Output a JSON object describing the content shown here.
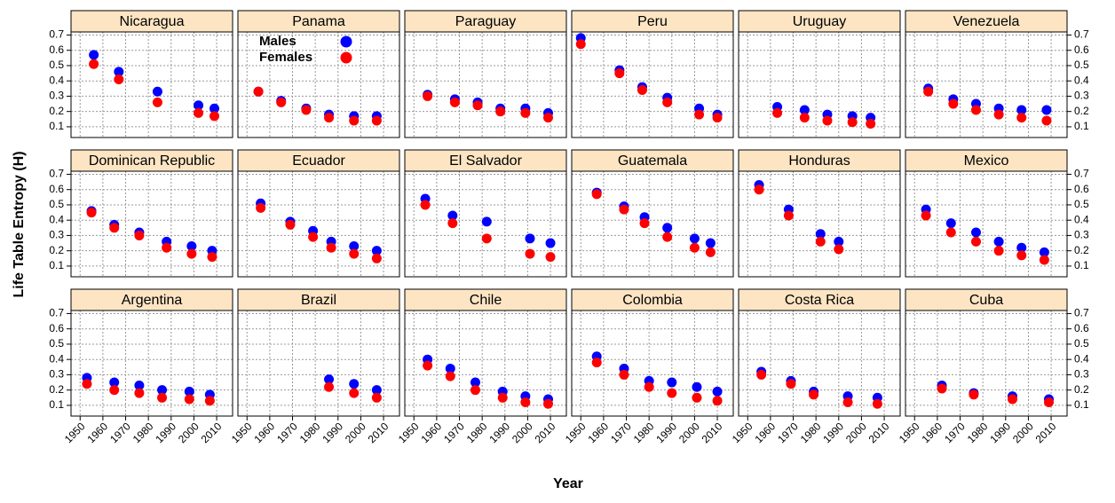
{
  "chart_data": {
    "type": "scatter",
    "x_label": "Year",
    "y_label": "Life Table Entropy (H)",
    "xlim": [
      1946,
      2017
    ],
    "xticks": [
      1950,
      1960,
      1970,
      1980,
      1990,
      2000,
      2010
    ],
    "ylim": [
      0.03,
      0.72
    ],
    "yticks": [
      0.1,
      0.2,
      0.3,
      0.4,
      0.5,
      0.6,
      0.7
    ],
    "grid": true,
    "series": [
      {
        "name": "Males",
        "color": "#0000ff"
      },
      {
        "name": "Females",
        "color": "#ff0000"
      }
    ],
    "panels": [
      {
        "title": "Nicaragua",
        "x": [
          1956,
          1967,
          1984,
          2002,
          2009
        ],
        "series": [
          {
            "values": [
              0.57,
              0.46,
              0.33,
              0.24,
              0.22
            ]
          },
          {
            "values": [
              0.51,
              0.41,
              0.26,
              0.19,
              0.17
            ]
          }
        ]
      },
      {
        "title": "Panama",
        "x": [
          1955,
          1965,
          1976,
          1986,
          1997,
          2007
        ],
        "series": [
          {
            "values": [
              0.33,
              0.27,
              0.22,
              0.18,
              0.17,
              0.17
            ]
          },
          {
            "values": [
              0.33,
              0.26,
              0.21,
              0.16,
              0.14,
              0.14
            ]
          }
        ]
      },
      {
        "title": "Paraguay",
        "x": [
          1956,
          1968,
          1978,
          1988,
          1999,
          2009
        ],
        "series": [
          {
            "values": [
              0.31,
              0.28,
              0.26,
              0.22,
              0.22,
              0.19
            ]
          },
          {
            "values": [
              0.3,
              0.26,
              0.24,
              0.2,
              0.19,
              0.16
            ]
          }
        ]
      },
      {
        "title": "Peru",
        "x": [
          1950,
          1967,
          1977,
          1988,
          2002,
          2010
        ],
        "series": [
          {
            "values": [
              0.68,
              0.47,
              0.36,
              0.29,
              0.22,
              0.18
            ]
          },
          {
            "values": [
              0.64,
              0.45,
              0.34,
              0.26,
              0.18,
              0.16
            ]
          }
        ]
      },
      {
        "title": "Uruguay",
        "x": [
          1963,
          1975,
          1985,
          1996,
          2004
        ],
        "series": [
          {
            "values": [
              0.23,
              0.21,
              0.18,
              0.17,
              0.16
            ]
          },
          {
            "values": [
              0.19,
              0.16,
              0.14,
              0.13,
              0.12
            ]
          }
        ]
      },
      {
        "title": "Venezuela",
        "x": [
          1956,
          1967,
          1977,
          1987,
          1997,
          2008
        ],
        "series": [
          {
            "values": [
              0.35,
              0.28,
              0.25,
              0.22,
              0.21,
              0.21
            ]
          },
          {
            "values": [
              0.33,
              0.25,
              0.21,
              0.18,
              0.16,
              0.14
            ]
          }
        ]
      },
      {
        "title": "Dominican Republic",
        "x": [
          1955,
          1965,
          1976,
          1988,
          1999,
          2008
        ],
        "series": [
          {
            "values": [
              0.46,
              0.37,
              0.32,
              0.26,
              0.23,
              0.2
            ]
          },
          {
            "values": [
              0.45,
              0.35,
              0.3,
              0.22,
              0.18,
              0.16
            ]
          }
        ]
      },
      {
        "title": "Ecuador",
        "x": [
          1956,
          1969,
          1979,
          1987,
          1997,
          2007
        ],
        "series": [
          {
            "values": [
              0.51,
              0.39,
              0.33,
              0.26,
              0.23,
              0.2
            ]
          },
          {
            "values": [
              0.48,
              0.37,
              0.29,
              0.22,
              0.18,
              0.15
            ]
          }
        ]
      },
      {
        "title": "El Salvador",
        "x": [
          1955,
          1967,
          1982,
          2001,
          2010
        ],
        "series": [
          {
            "values": [
              0.54,
              0.43,
              0.39,
              0.28,
              0.25
            ]
          },
          {
            "values": [
              0.5,
              0.38,
              0.28,
              0.18,
              0.16
            ]
          }
        ]
      },
      {
        "title": "Guatemala",
        "x": [
          1957,
          1969,
          1978,
          1988,
          2000,
          2007
        ],
        "series": [
          {
            "values": [
              0.58,
              0.49,
              0.42,
              0.35,
              0.28,
              0.25
            ]
          },
          {
            "values": [
              0.57,
              0.47,
              0.38,
              0.29,
              0.22,
              0.19
            ]
          }
        ]
      },
      {
        "title": "Honduras",
        "x": [
          1955,
          1968,
          1982,
          1990
        ],
        "series": [
          {
            "values": [
              0.63,
              0.47,
              0.31,
              0.26
            ]
          },
          {
            "values": [
              0.6,
              0.43,
              0.26,
              0.21
            ]
          }
        ]
      },
      {
        "title": "Mexico",
        "x": [
          1955,
          1966,
          1977,
          1987,
          1997,
          2007
        ],
        "series": [
          {
            "values": [
              0.47,
              0.38,
              0.32,
              0.26,
              0.22,
              0.19
            ]
          },
          {
            "values": [
              0.43,
              0.32,
              0.26,
              0.2,
              0.17,
              0.14
            ]
          }
        ]
      },
      {
        "title": "Argentina",
        "x": [
          1953,
          1965,
          1976,
          1986,
          1998,
          2007
        ],
        "series": [
          {
            "values": [
              0.28,
              0.25,
              0.23,
              0.2,
              0.19,
              0.17
            ]
          },
          {
            "values": [
              0.24,
              0.2,
              0.18,
              0.15,
              0.14,
              0.13
            ]
          }
        ]
      },
      {
        "title": "Brazil",
        "x": [
          1986,
          1997,
          2007
        ],
        "series": [
          {
            "values": [
              0.27,
              0.24,
              0.2
            ]
          },
          {
            "values": [
              0.22,
              0.18,
              0.15
            ]
          }
        ]
      },
      {
        "title": "Chile",
        "x": [
          1956,
          1966,
          1977,
          1989,
          1999,
          2009
        ],
        "series": [
          {
            "values": [
              0.4,
              0.34,
              0.25,
              0.19,
              0.16,
              0.14
            ]
          },
          {
            "values": [
              0.36,
              0.29,
              0.2,
              0.15,
              0.12,
              0.11
            ]
          }
        ]
      },
      {
        "title": "Colombia",
        "x": [
          1957,
          1969,
          1980,
          1990,
          2001,
          2010
        ],
        "series": [
          {
            "values": [
              0.42,
              0.34,
              0.26,
              0.25,
              0.22,
              0.19
            ]
          },
          {
            "values": [
              0.38,
              0.3,
              0.22,
              0.18,
              0.15,
              0.13
            ]
          }
        ]
      },
      {
        "title": "Costa Rica",
        "x": [
          1956,
          1969,
          1979,
          1994,
          2007
        ],
        "series": [
          {
            "values": [
              0.32,
              0.26,
              0.19,
              0.16,
              0.15
            ]
          },
          {
            "values": [
              0.3,
              0.24,
              0.17,
              0.12,
              0.11
            ]
          }
        ]
      },
      {
        "title": "Cuba",
        "x": [
          1962,
          1976,
          1993,
          2009
        ],
        "series": [
          {
            "values": [
              0.23,
              0.18,
              0.16,
              0.14
            ]
          },
          {
            "values": [
              0.21,
              0.17,
              0.14,
              0.12
            ]
          }
        ]
      }
    ]
  }
}
